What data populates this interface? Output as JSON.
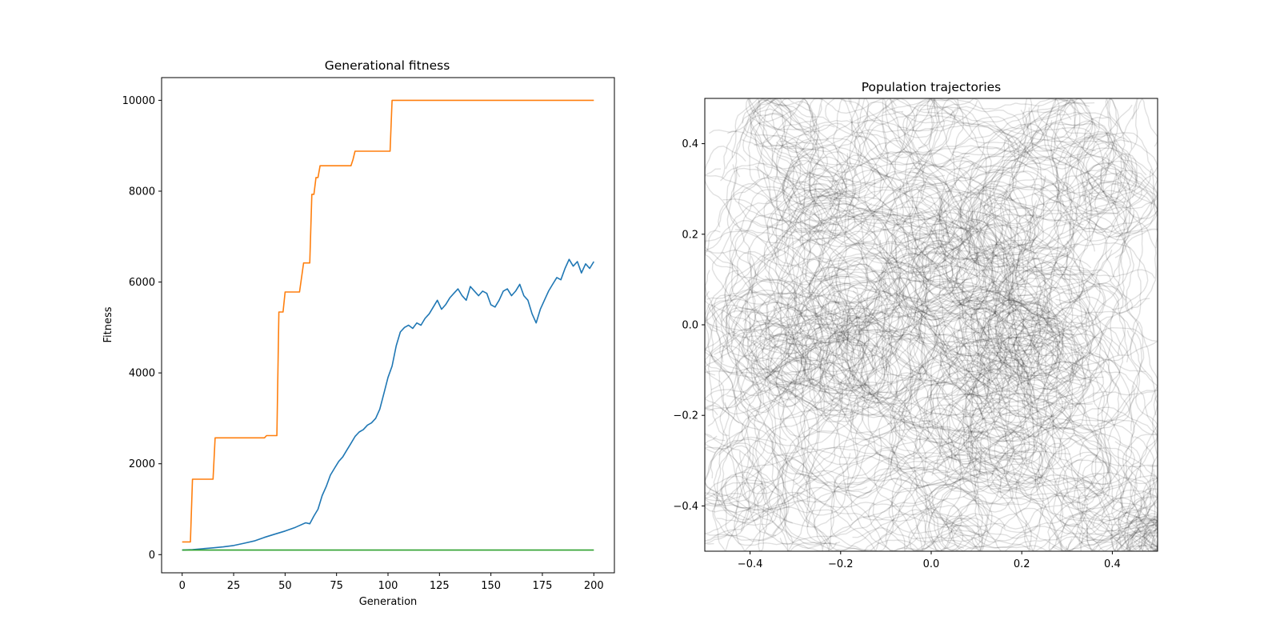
{
  "chart_data": [
    {
      "type": "line",
      "title": "Generational fitness",
      "xlabel": "Generation",
      "ylabel": "Fitness",
      "xlim": [
        -10,
        210
      ],
      "ylim": [
        -400,
        10500
      ],
      "xticks": [
        0,
        25,
        50,
        75,
        100,
        125,
        150,
        175,
        200
      ],
      "yticks": [
        0,
        2000,
        4000,
        6000,
        8000,
        10000
      ],
      "grid": false,
      "legend": "none",
      "series": [
        {
          "color": "#ff7f0e",
          "x": [
            0,
            4,
            5,
            15,
            16,
            40,
            41,
            43,
            44,
            46,
            47,
            49,
            50,
            56,
            57,
            59,
            60,
            62,
            63,
            64,
            65,
            66,
            67,
            74,
            75,
            82,
            83,
            84,
            85,
            101,
            102,
            103,
            200
          ],
          "values": [
            280,
            280,
            1660,
            1660,
            2570,
            2570,
            2620,
            2620,
            2620,
            2620,
            5340,
            5340,
            5780,
            5780,
            5780,
            6420,
            6420,
            6420,
            7930,
            7930,
            8300,
            8300,
            8560,
            8560,
            8560,
            8560,
            8700,
            8880,
            8880,
            8880,
            10000,
            10000,
            10000
          ]
        },
        {
          "color": "#1f77b4",
          "x": [
            0,
            5,
            10,
            15,
            20,
            25,
            30,
            35,
            40,
            45,
            50,
            55,
            60,
            62,
            64,
            66,
            68,
            70,
            72,
            74,
            76,
            78,
            80,
            82,
            84,
            86,
            88,
            90,
            92,
            94,
            96,
            98,
            100,
            102,
            104,
            106,
            108,
            110,
            112,
            114,
            116,
            118,
            120,
            122,
            124,
            126,
            128,
            130,
            132,
            134,
            136,
            138,
            140,
            142,
            144,
            146,
            148,
            150,
            152,
            154,
            156,
            158,
            160,
            162,
            164,
            166,
            168,
            170,
            172,
            174,
            176,
            178,
            180,
            182,
            184,
            186,
            188,
            190,
            192,
            194,
            196,
            198,
            200
          ],
          "values": [
            100,
            110,
            130,
            150,
            170,
            200,
            250,
            300,
            380,
            450,
            520,
            600,
            700,
            680,
            850,
            1000,
            1300,
            1500,
            1750,
            1900,
            2050,
            2150,
            2300,
            2450,
            2600,
            2700,
            2750,
            2850,
            2900,
            3000,
            3200,
            3550,
            3900,
            4150,
            4600,
            4900,
            5000,
            5050,
            4980,
            5100,
            5050,
            5200,
            5300,
            5450,
            5600,
            5400,
            5500,
            5650,
            5750,
            5850,
            5700,
            5600,
            5900,
            5800,
            5700,
            5800,
            5750,
            5500,
            5450,
            5600,
            5800,
            5850,
            5700,
            5800,
            5950,
            5700,
            5600,
            5300,
            5100,
            5400,
            5600,
            5800,
            5950,
            6100,
            6050,
            6300,
            6500,
            6350,
            6450,
            6200,
            6400,
            6300,
            6450
          ]
        },
        {
          "color": "#2ca02c",
          "x": [
            0,
            200
          ],
          "values": [
            100,
            100
          ]
        }
      ]
    },
    {
      "type": "line",
      "title": "Population trajectories",
      "xlabel": "",
      "ylabel": "",
      "xlim": [
        -0.5,
        0.5
      ],
      "ylim": [
        -0.5,
        0.5
      ],
      "xticks": [
        "−0.4",
        "−0.2",
        "0.0",
        "0.2",
        "0.4"
      ],
      "yticks": [
        "−0.4",
        "−0.2",
        "0.0",
        "0.2",
        "0.4"
      ],
      "line_color": "#000000",
      "line_opacity": 0.12,
      "grid": false,
      "legend": "none",
      "hotspots": [
        [
          -0.33,
          0.44
        ],
        [
          0.0,
          0.45
        ],
        [
          0.3,
          0.42
        ],
        [
          0.15,
          0.22
        ],
        [
          -0.18,
          0.05
        ],
        [
          -0.18,
          -0.05
        ],
        [
          0.2,
          -0.05
        ],
        [
          0.25,
          0.05
        ],
        [
          -0.3,
          -0.1
        ],
        [
          -0.1,
          -0.1
        ],
        [
          -0.45,
          -0.38
        ],
        [
          0.15,
          -0.3
        ],
        [
          0.35,
          -0.38
        ],
        [
          0.1,
          -0.1
        ],
        [
          -0.35,
          0.0
        ],
        [
          0.3,
          -0.1
        ],
        [
          0.05,
          -0.45
        ],
        [
          -0.25,
          0.3
        ],
        [
          0.4,
          0.3
        ],
        [
          0.0,
          0.15
        ]
      ],
      "focus_endpoint": [
        0.5,
        -0.5
      ]
    }
  ]
}
